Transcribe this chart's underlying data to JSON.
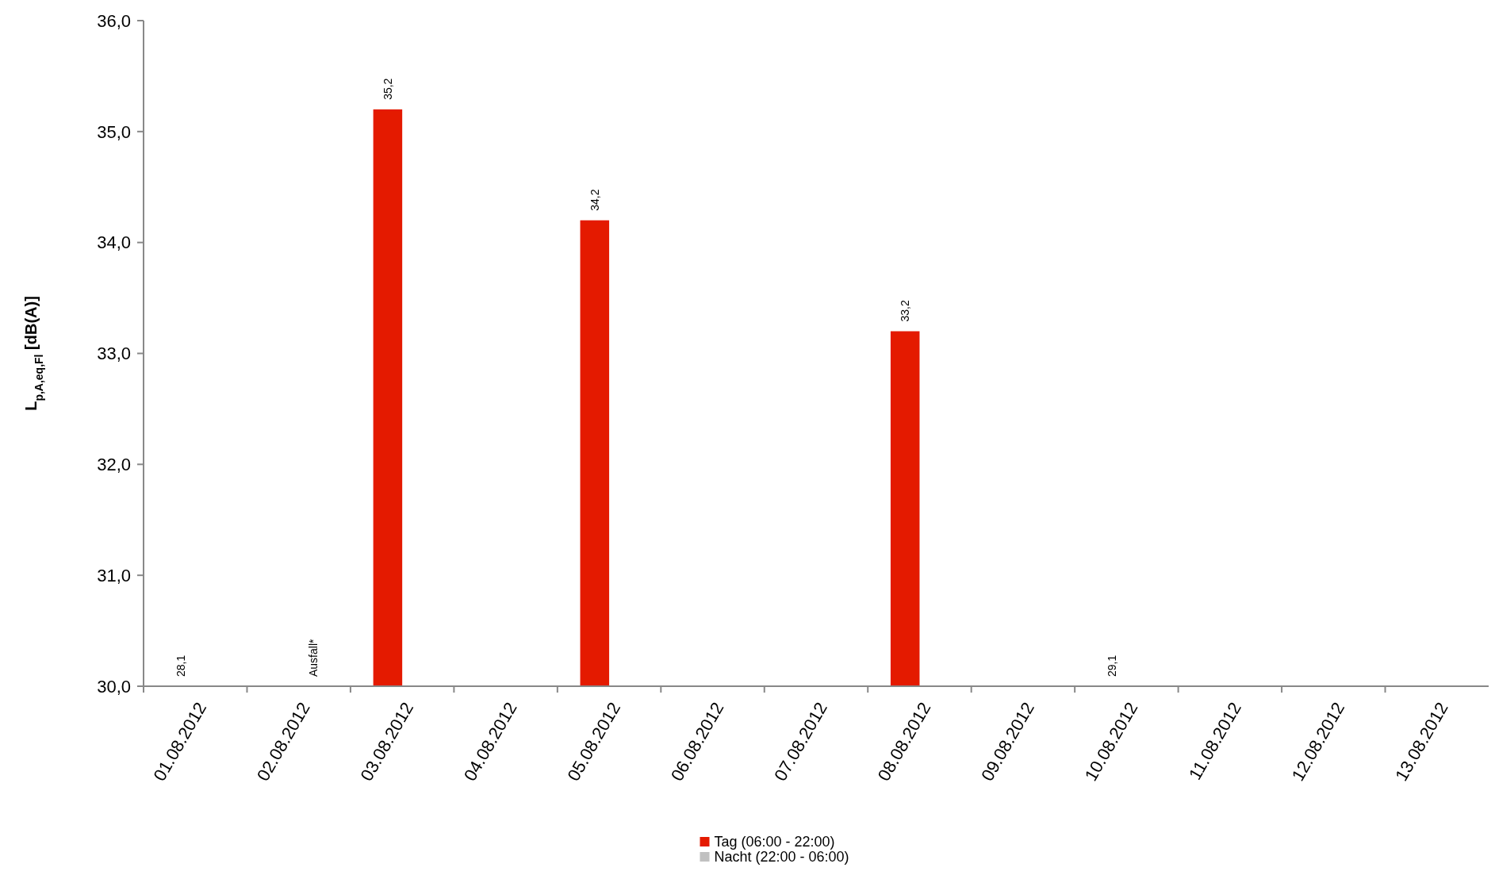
{
  "chart_data": {
    "type": "bar",
    "ylabel": "L$_{p,A,eq,Fl}$ [dB(A)]",
    "categories": [
      "01.08.2012",
      "02.08.2012",
      "03.08.2012",
      "04.08.2012",
      "05.08.2012",
      "06.08.2012",
      "07.08.2012",
      "08.08.2012",
      "09.08.2012",
      "10.08.2012",
      "11.08.2012",
      "12.08.2012",
      "13.08.2012"
    ],
    "series": [
      {
        "name": "Tag (06:00 - 22:00)",
        "color": "#e41a00",
        "values": [
          null,
          null,
          35.2,
          null,
          34.2,
          null,
          null,
          33.2,
          null,
          null,
          null,
          null,
          null
        ],
        "value_labels": [
          "28,1",
          null,
          "35,2",
          null,
          "34,2",
          null,
          null,
          "33,2",
          null,
          "29,1",
          null,
          null,
          null
        ]
      },
      {
        "name": "Nacht (22:00 - 06:00)",
        "color": "#c0c0c0",
        "values": [
          null,
          null,
          null,
          null,
          null,
          null,
          null,
          null,
          null,
          null,
          null,
          null,
          null
        ],
        "value_labels": [
          null,
          "Ausfall*",
          null,
          null,
          null,
          null,
          null,
          null,
          null,
          null,
          null,
          null,
          null
        ]
      }
    ],
    "ylim": [
      30,
      36
    ],
    "yticks": [
      {
        "value": 30,
        "label": "30,0"
      },
      {
        "value": 31,
        "label": "31,0"
      },
      {
        "value": 32,
        "label": "32,0"
      },
      {
        "value": 33,
        "label": "33,0"
      },
      {
        "value": 34,
        "label": "34,0"
      },
      {
        "value": 35,
        "label": "35,0"
      },
      {
        "value": 36,
        "label": "36,0"
      }
    ],
    "grid": false,
    "legend": "bottom"
  }
}
